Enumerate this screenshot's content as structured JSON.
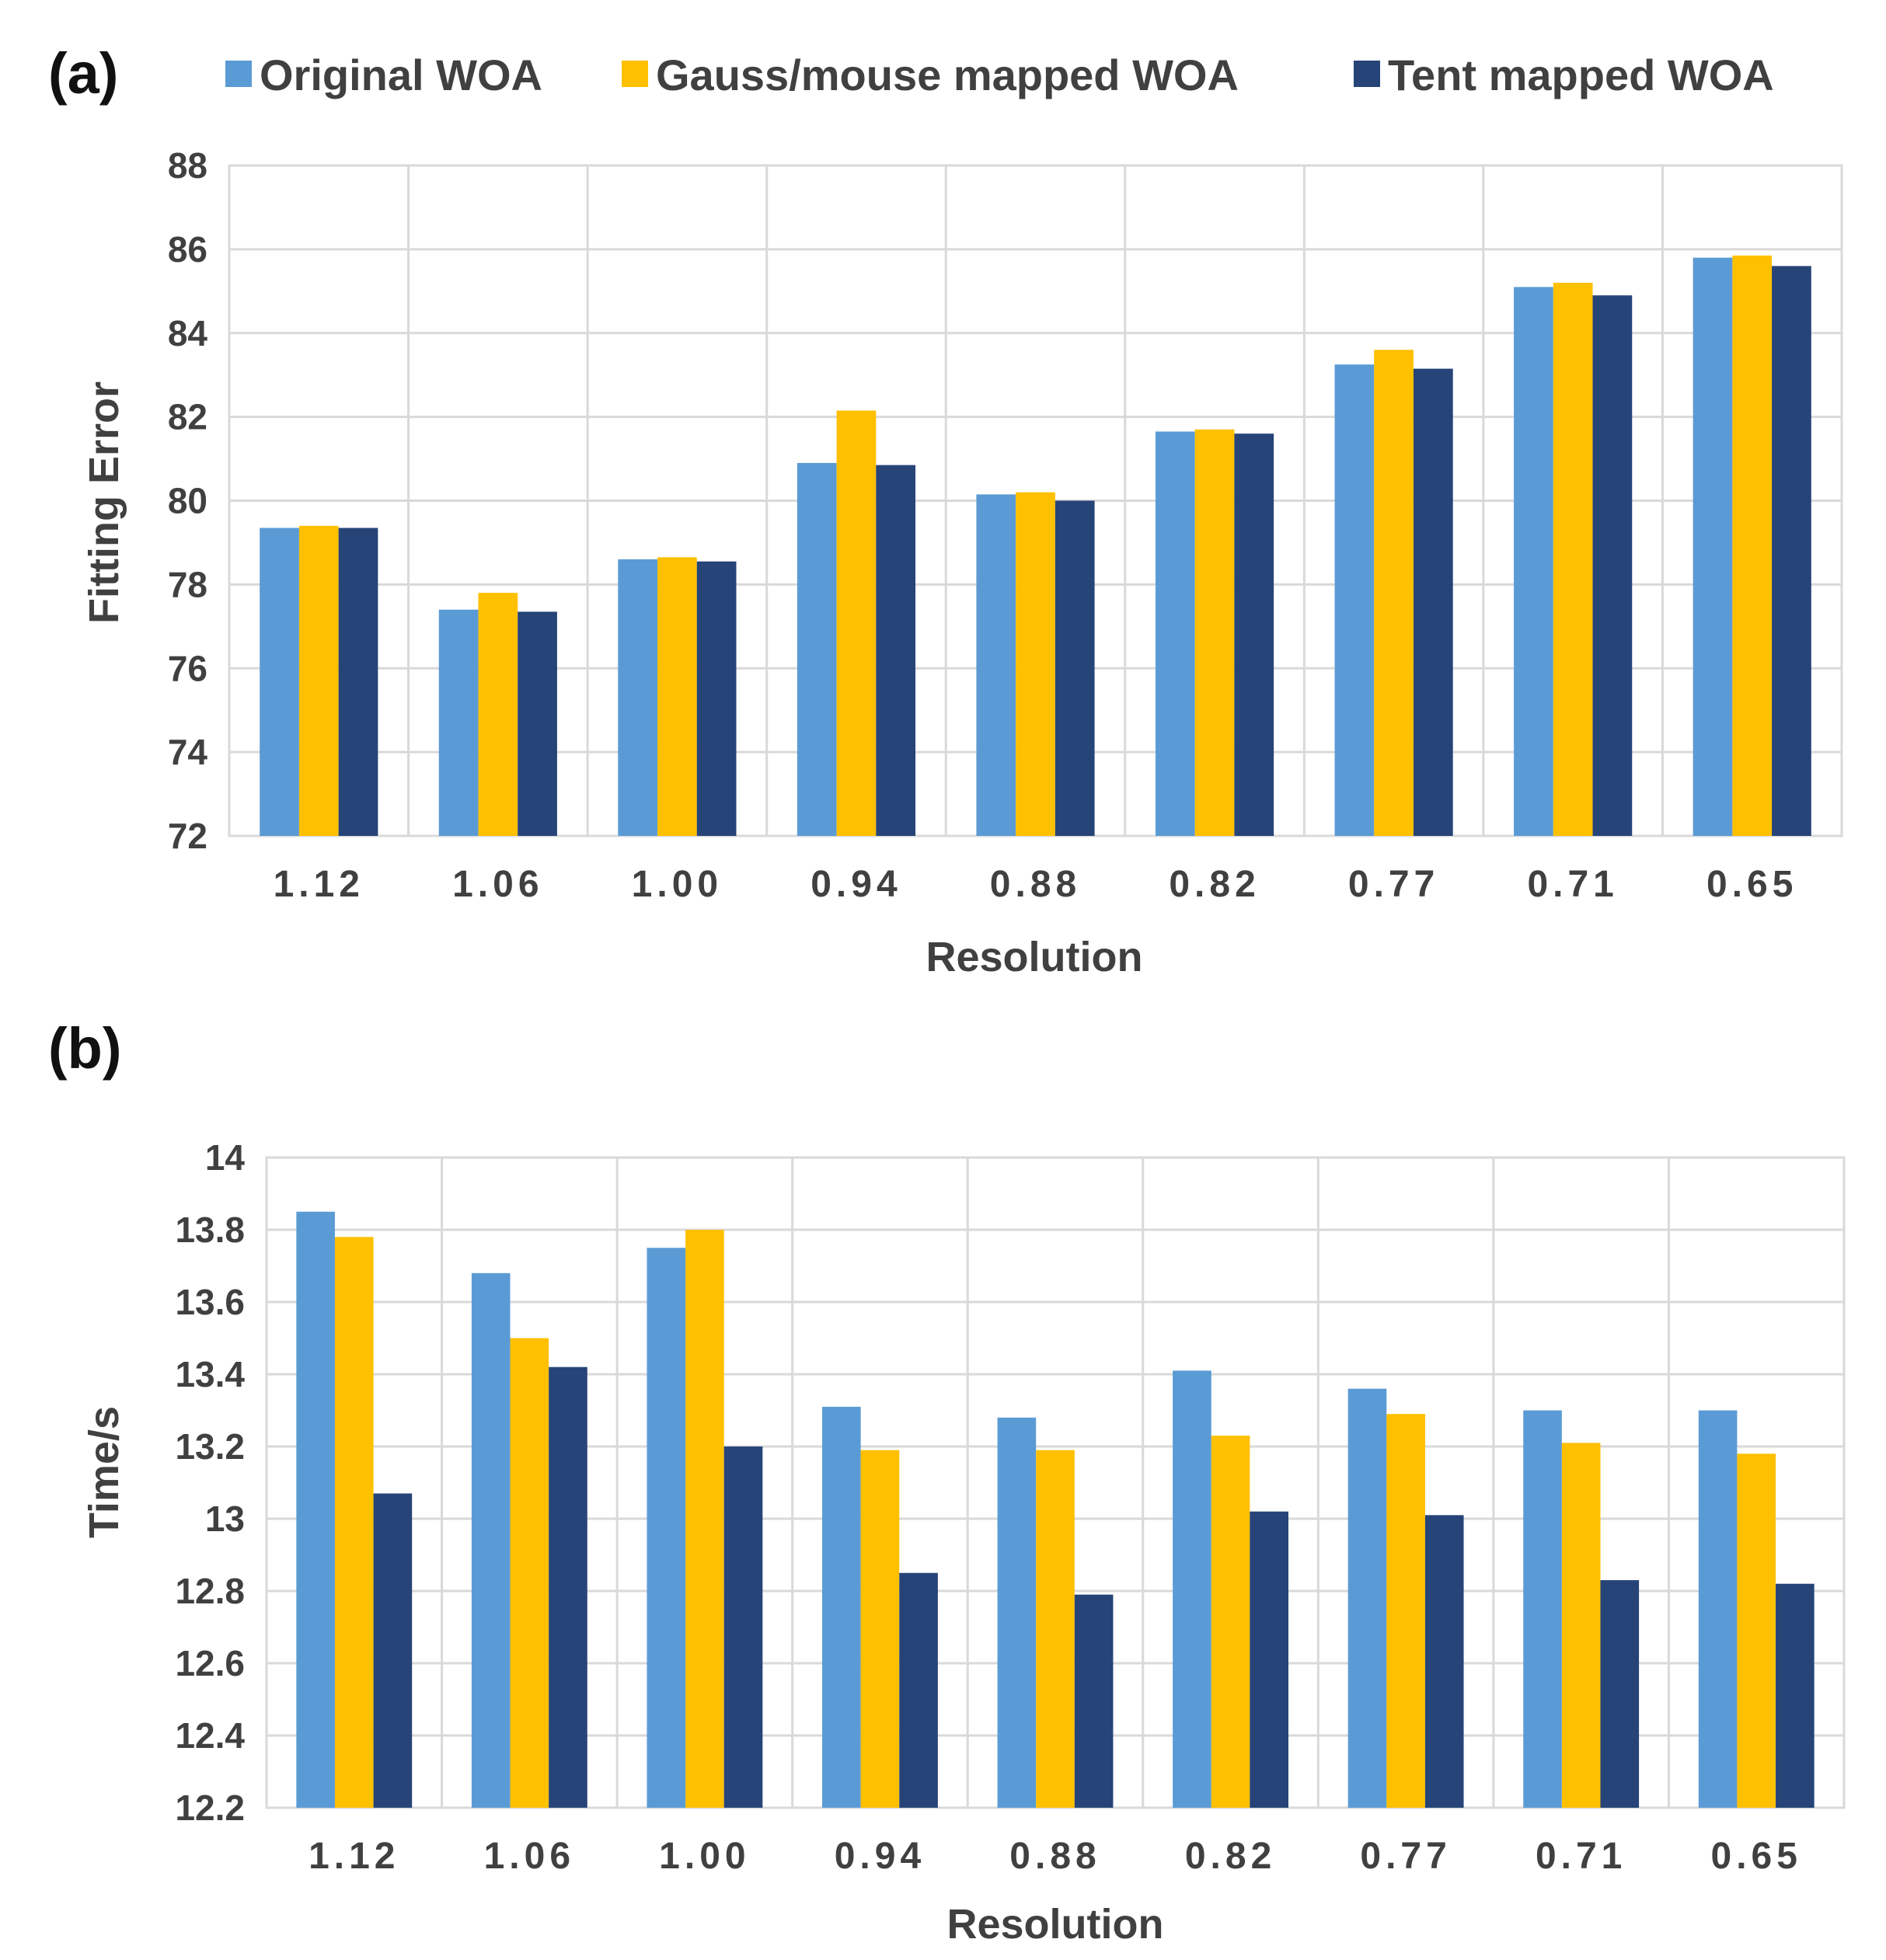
{
  "legend": {
    "items": [
      {
        "label": "Original WOA",
        "color": "#5b9bd5"
      },
      {
        "label": "Gauss/mouse mapped WOA",
        "color": "#ffc000"
      },
      {
        "label": "Tent mapped WOA",
        "color": "#264478"
      }
    ]
  },
  "chart_data": [
    {
      "panel": "(a)",
      "type": "bar",
      "title": "",
      "xlabel": "Resolution",
      "ylabel": "Fitting Error",
      "ylim": [
        72,
        88
      ],
      "yticks": [
        "72",
        "74",
        "76",
        "78",
        "80",
        "82",
        "84",
        "86",
        "88"
      ],
      "categories": [
        "1.12",
        "1.06",
        "1.00",
        "0.94",
        "0.88",
        "0.82",
        "0.77",
        "0.71",
        "0.65"
      ],
      "series": [
        {
          "name": "Original WOA",
          "values": [
            79.35,
            77.4,
            78.6,
            80.9,
            80.15,
            81.65,
            83.25,
            85.1,
            85.8
          ]
        },
        {
          "name": "Gauss/mouse mapped WOA",
          "values": [
            79.4,
            77.8,
            78.65,
            82.15,
            80.2,
            81.7,
            83.6,
            85.2,
            85.85
          ]
        },
        {
          "name": "Tent mapped WOA",
          "values": [
            79.35,
            77.35,
            78.55,
            80.85,
            80.0,
            81.6,
            83.15,
            84.9,
            85.6
          ]
        }
      ]
    },
    {
      "panel": "(b)",
      "type": "bar",
      "title": "",
      "xlabel": "Resolution",
      "ylabel": "Time/s",
      "ylim": [
        12.2,
        14
      ],
      "yticks": [
        "12.2",
        "12.4",
        "12.6",
        "12.8",
        "13",
        "13.2",
        "13.4",
        "13.6",
        "13.8",
        "14"
      ],
      "categories": [
        "1.12",
        "1.06",
        "1.00",
        "0.94",
        "0.88",
        "0.82",
        "0.77",
        "0.71",
        "0.65"
      ],
      "series": [
        {
          "name": "Original WOA",
          "values": [
            13.85,
            13.68,
            13.75,
            13.31,
            13.28,
            13.41,
            13.36,
            13.3,
            13.3
          ]
        },
        {
          "name": "Gauss/mouse mapped WOA",
          "values": [
            13.78,
            13.5,
            13.8,
            13.19,
            13.19,
            13.23,
            13.29,
            13.21,
            13.18
          ]
        },
        {
          "name": "Tent mapped WOA",
          "values": [
            13.07,
            13.42,
            13.2,
            12.85,
            12.79,
            13.02,
            13.01,
            12.83,
            12.82
          ]
        }
      ]
    }
  ]
}
